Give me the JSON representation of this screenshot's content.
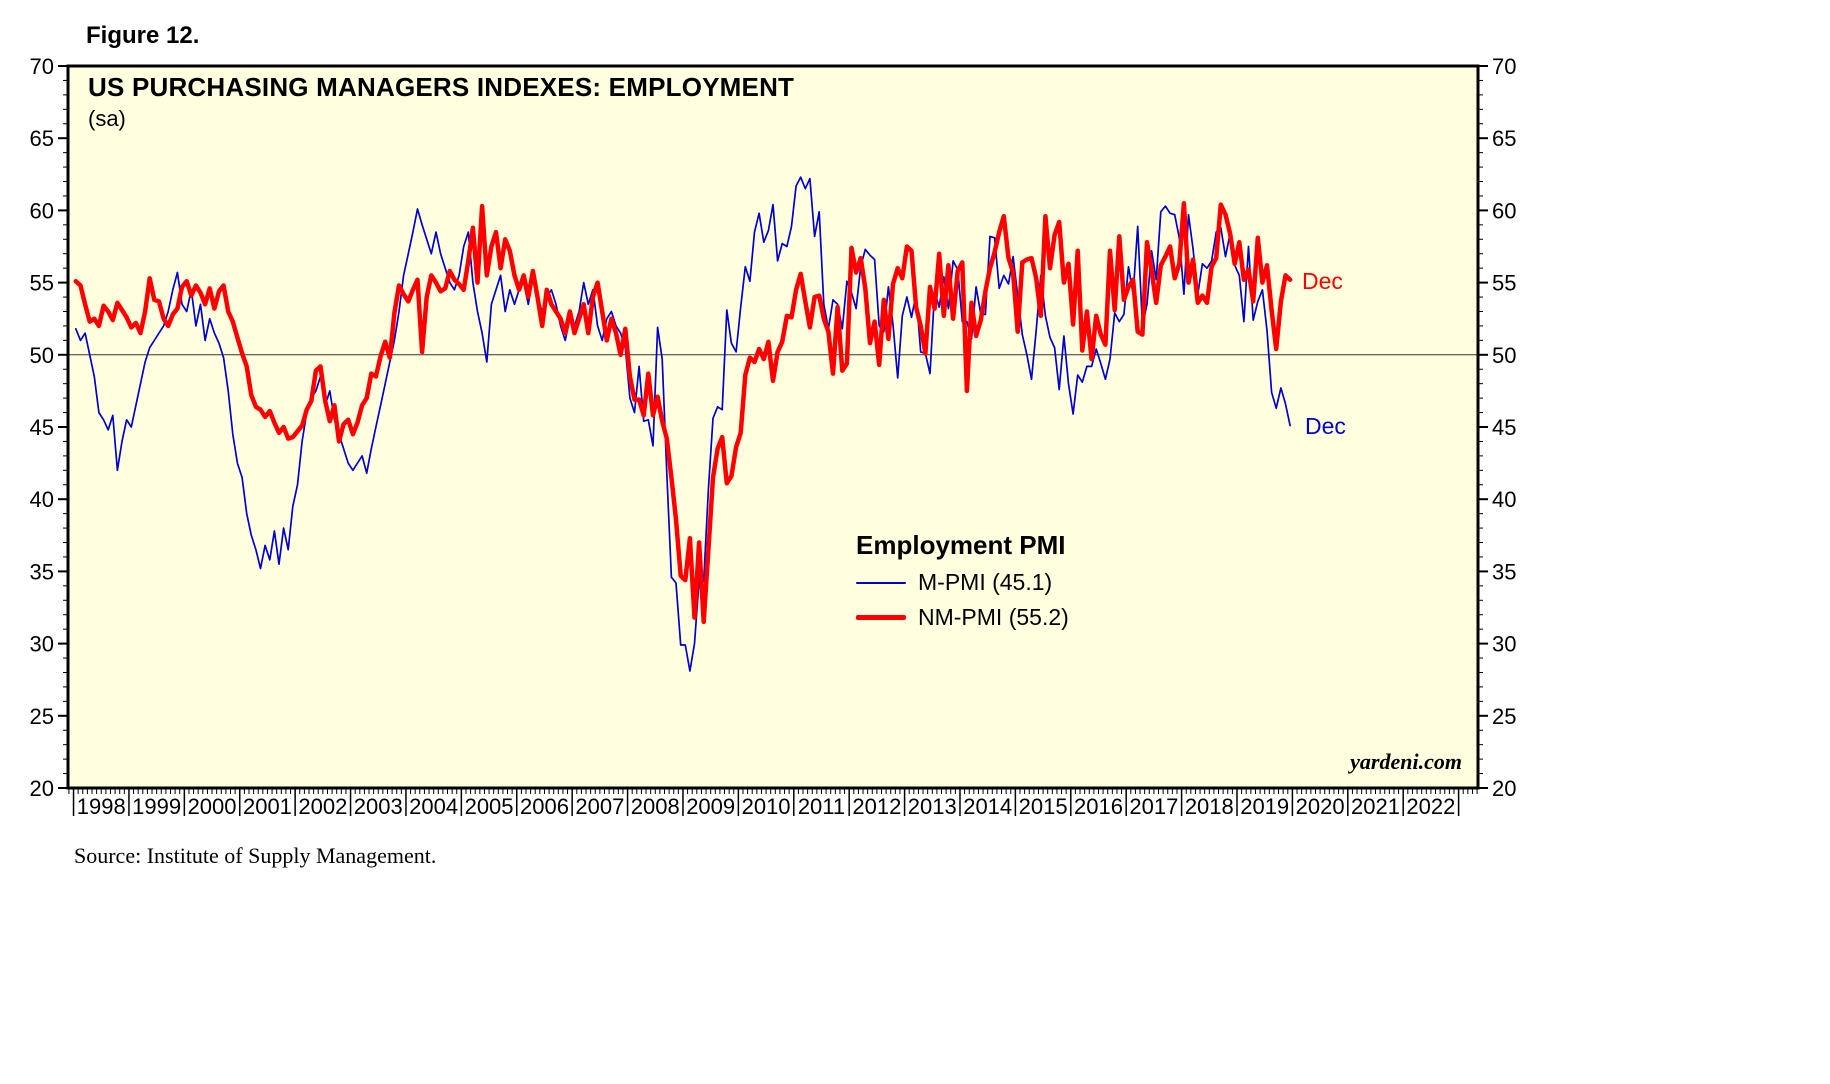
{
  "figure_label": "Figure 12.",
  "title": "US PURCHASING MANAGERS INDEXES: EMPLOYMENT",
  "subtitle": "(sa)",
  "source": "Source: Institute of Supply Management.",
  "watermark": "yardeni.com",
  "legend": {
    "title": "Employment PMI",
    "items": [
      {
        "label": "M-PMI (45.1)",
        "color": "#0000cc",
        "thickness": 2
      },
      {
        "label": "NM-PMI (55.2)",
        "color": "#ff0000",
        "thickness": 5
      }
    ]
  },
  "annotations": {
    "nm_pmi_end": "Dec",
    "m_pmi_end": "Dec",
    "nm_pmi_end_color": "#ff0000",
    "m_pmi_end_color": "#0000cc"
  },
  "chart_data": {
    "type": "line",
    "title": "US PURCHASING MANAGERS INDEXES: EMPLOYMENT",
    "subtitle": "(sa)",
    "plot_bg": "#ffffe0",
    "reference_line": 50,
    "ylim": [
      20,
      70
    ],
    "yticks": [
      20,
      25,
      30,
      35,
      40,
      45,
      50,
      55,
      60,
      65,
      70
    ],
    "minor_ytick_step": 1,
    "xlim": [
      1997.9,
      2023.35
    ],
    "x_year_labels": [
      1998,
      1999,
      2000,
      2001,
      2002,
      2003,
      2004,
      2005,
      2006,
      2007,
      2008,
      2009,
      2010,
      2011,
      2012,
      2013,
      2014,
      2015,
      2016,
      2017,
      2018,
      2019,
      2020,
      2021,
      2022
    ],
    "x_start": "1998-01",
    "x_end": "2019-12",
    "frequency": "monthly",
    "legend_position": "inside-center",
    "grid": false,
    "series": [
      {
        "name": "M-PMI",
        "legend_label": "M-PMI (45.1)",
        "last_value": 45.1,
        "last_point_label": "Dec",
        "color": "#0000cc",
        "width": 1.7,
        "values": [
          51.8,
          51.0,
          51.5,
          50.0,
          48.5,
          46.0,
          45.5,
          44.8,
          45.8,
          42.0,
          44.0,
          45.5,
          45.0,
          46.5,
          48.0,
          49.5,
          50.5,
          51.0,
          51.5,
          52.0,
          53.0,
          54.5,
          55.7,
          53.5,
          53.0,
          54.5,
          52.0,
          53.5,
          51.0,
          52.5,
          51.5,
          50.8,
          49.8,
          47.5,
          44.5,
          42.5,
          41.5,
          39.0,
          37.5,
          36.5,
          35.2,
          36.8,
          35.8,
          37.8,
          35.5,
          38.0,
          36.5,
          39.5,
          41.0,
          44.0,
          46.0,
          47.0,
          47.5,
          48.5,
          46.5,
          47.5,
          45.5,
          44.5,
          43.5,
          42.5,
          42.0,
          42.5,
          43.0,
          41.8,
          43.5,
          45.0,
          46.5,
          48.0,
          49.5,
          51.0,
          53.0,
          55.5,
          57.0,
          58.5,
          60.1,
          59.0,
          58.0,
          57.0,
          58.5,
          57.0,
          56.0,
          55.0,
          54.5,
          55.5,
          57.5,
          58.5,
          55.0,
          53.0,
          51.5,
          49.5,
          53.5,
          54.5,
          55.5,
          53.0,
          54.5,
          53.5,
          54.5,
          55.0,
          53.5,
          55.5,
          54.0,
          53.0,
          54.0,
          54.5,
          53.5,
          52.0,
          51.0,
          52.5,
          52.0,
          53.0,
          55.0,
          53.5,
          54.5,
          52.0,
          51.0,
          52.5,
          53.0,
          52.0,
          51.5,
          50.5,
          47.0,
          46.0,
          49.2,
          45.4,
          45.5,
          43.7,
          51.9,
          49.7,
          41.8,
          34.6,
          34.2,
          29.9,
          29.9,
          28.1,
          30.0,
          34.4,
          34.3,
          40.7,
          45.6,
          46.4,
          46.2,
          53.1,
          50.8,
          50.2,
          53.3,
          56.1,
          55.1,
          58.5,
          59.8,
          57.8,
          58.6,
          60.4,
          56.5,
          57.7,
          57.5,
          58.9,
          61.7,
          62.3,
          61.5,
          62.2,
          58.2,
          59.9,
          53.5,
          51.8,
          53.8,
          53.5,
          51.8,
          55.1,
          54.3,
          53.2,
          56.1,
          57.3,
          56.9,
          56.6,
          52.0,
          51.6,
          54.7,
          52.1,
          48.4,
          52.7,
          54.0,
          52.6,
          54.2,
          50.2,
          50.1,
          48.7,
          54.4,
          53.3,
          55.4,
          53.2,
          56.5,
          55.9,
          52.3,
          52.3,
          51.1,
          54.7,
          52.8,
          52.8,
          58.2,
          58.1,
          54.6,
          55.5,
          54.9,
          56.8,
          54.1,
          51.4,
          50.0,
          48.3,
          51.7,
          55.5,
          52.7,
          51.2,
          50.5,
          47.6,
          51.3,
          48.0,
          45.9,
          48.6,
          48.1,
          49.2,
          49.2,
          50.4,
          49.4,
          48.3,
          49.7,
          52.9,
          52.3,
          52.8,
          56.1,
          54.2,
          58.9,
          52.0,
          53.5,
          57.2,
          55.2,
          59.9,
          60.3,
          59.8,
          59.7,
          58.1,
          54.2,
          59.7,
          57.3,
          54.2,
          56.3,
          56.0,
          56.5,
          58.5,
          58.8,
          56.8,
          58.4,
          56.2,
          55.5,
          52.3,
          57.5,
          52.4,
          53.7,
          54.5,
          51.7,
          47.4,
          46.3,
          47.7,
          46.6,
          45.1
        ]
      },
      {
        "name": "NM-PMI",
        "legend_label": "NM-PMI (55.2)",
        "last_value": 55.2,
        "last_point_label": "Dec",
        "color": "#ff0000",
        "width": 4.5,
        "values": [
          55.1,
          54.8,
          53.5,
          52.3,
          52.5,
          52.0,
          53.4,
          53.0,
          52.4,
          53.6,
          53.1,
          52.6,
          51.9,
          52.2,
          51.5,
          53.0,
          55.3,
          53.8,
          53.7,
          52.5,
          52.0,
          52.8,
          53.2,
          54.7,
          55.1,
          54.1,
          54.8,
          54.3,
          53.5,
          54.6,
          53.2,
          54.4,
          54.8,
          53.0,
          52.3,
          51.2,
          50.1,
          49.2,
          47.2,
          46.4,
          46.2,
          45.7,
          46.1,
          45.3,
          44.6,
          45.0,
          44.2,
          44.3,
          44.7,
          45.1,
          46.2,
          46.8,
          48.9,
          49.2,
          46.8,
          45.4,
          46.5,
          44.0,
          45.2,
          45.5,
          44.5,
          45.3,
          46.5,
          47.0,
          48.7,
          48.5,
          49.9,
          50.9,
          49.8,
          52.9,
          54.8,
          54.2,
          53.7,
          54.5,
          55.2,
          50.2,
          54.0,
          55.5,
          55.0,
          54.4,
          54.6,
          55.8,
          55.2,
          54.9,
          54.5,
          56.5,
          58.8,
          55.0,
          60.3,
          55.5,
          57.5,
          58.5,
          56.0,
          58.0,
          57.2,
          55.5,
          54.5,
          55.5,
          54.0,
          55.8,
          54.0,
          52.0,
          54.5,
          53.5,
          53.0,
          52.5,
          51.5,
          53.0,
          51.5,
          52.5,
          53.5,
          51.5,
          54.0,
          55.0,
          53.0,
          51.0,
          52.5,
          51.5,
          50.0,
          51.8,
          48.5,
          46.9,
          46.9,
          45.8,
          48.7,
          45.8,
          47.1,
          45.4,
          44.2,
          41.5,
          38.6,
          34.7,
          34.4,
          37.3,
          31.8,
          37.0,
          31.5,
          36.5,
          41.5,
          43.5,
          44.3,
          41.1,
          41.6,
          43.6,
          44.6,
          48.6,
          49.8,
          49.5,
          50.4,
          49.7,
          50.9,
          48.2,
          50.2,
          50.9,
          52.7,
          52.6,
          54.5,
          55.6,
          53.7,
          51.9,
          54.0,
          54.1,
          52.5,
          51.6,
          48.7,
          53.3,
          48.9,
          49.4,
          57.4,
          55.7,
          56.7,
          54.6,
          50.8,
          52.3,
          49.3,
          53.8,
          51.1,
          54.9,
          56.0,
          55.3,
          57.5,
          57.2,
          53.3,
          52.0,
          50.1,
          54.7,
          53.2,
          57.0,
          52.7,
          56.2,
          52.5,
          55.8,
          56.4,
          47.5,
          53.6,
          51.3,
          52.4,
          54.4,
          56.0,
          57.1,
          58.5,
          59.6,
          56.7,
          55.7,
          51.6,
          56.4,
          56.6,
          56.7,
          55.3,
          52.7,
          59.6,
          56.0,
          58.3,
          59.2,
          55.0,
          56.3,
          52.1,
          57.2,
          50.3,
          53.0,
          49.7,
          52.7,
          51.4,
          50.7,
          57.2,
          53.1,
          58.2,
          53.8,
          54.7,
          55.2,
          51.6,
          51.4,
          57.8,
          55.8,
          53.6,
          56.2,
          56.8,
          57.5,
          55.3,
          56.3,
          60.5,
          55.0,
          56.6,
          53.6,
          54.1,
          53.6,
          56.1,
          56.7,
          60.4,
          59.7,
          58.4,
          56.3,
          57.8,
          55.2,
          55.9,
          53.7,
          58.1,
          55.0,
          56.2,
          53.1,
          50.4,
          53.7,
          55.5,
          55.2
        ]
      }
    ]
  }
}
